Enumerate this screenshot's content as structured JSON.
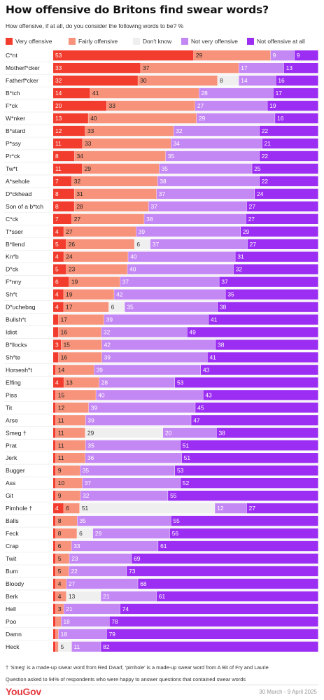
{
  "title": "How offensive do Britons find swear words?",
  "subtitle": "How offensive, if at all, do you consider the following words to be? %",
  "legend": {
    "very": "Very offensive",
    "fairly": "Fairly offensive",
    "dontknow": "Don't know",
    "notvery": "Not very offensive",
    "notatall": "Not offensive at all"
  },
  "footnote1": "† 'Smeg' is a made-up swear word from Red Dwarf, 'pimhole' is a made-up swear word from A Bit of Fry and Laurie",
  "footnote2": "Question asked to 94% of respondents who were happy to answer questions that contained swear words",
  "brand": "YouGov",
  "dates": "30 March - 9 April 2025",
  "colors": {
    "very": "#f23d2e",
    "fairly": "#f7937a",
    "dontknow": "#efefef",
    "notvery": "#c488f5",
    "notatall": "#9b2ef2"
  },
  "chart_data": {
    "type": "bar",
    "orientation": "horizontal",
    "stacked": true,
    "xlim": [
      0,
      100
    ],
    "categories": [
      "C*nt",
      "Motherf*cker",
      "Fatherf*cker",
      "B*tch",
      "F*ck",
      "W*nker",
      "B*stard",
      "P*ssy",
      "Pr*ck",
      "Tw*t",
      "A*sehole",
      "D*ckhead",
      "Son of a b*tch",
      "C*ck",
      "T*sser",
      "B*llend",
      "Kn*b",
      "D*ck",
      "F*nny",
      "Sh*t",
      "D*uchebag",
      "Bullsh*t",
      "Idiot",
      "B*llocks",
      "Sh*te",
      "Horsesh*t",
      "Effing",
      "Piss",
      "Tit",
      "Arse",
      "Smeg †",
      "Prat",
      "Jerk",
      "Bugger",
      "Ass",
      "Git",
      "Pimhole †",
      "Balls",
      "Feck",
      "Crap",
      "Twit",
      "Bum",
      "Bloody",
      "Berk",
      "Hell",
      "Poo",
      "Damn",
      "Heck"
    ],
    "series": [
      {
        "name": "Very offensive",
        "values": [
          53,
          33,
          32,
          14,
          20,
          13,
          12,
          11,
          8,
          11,
          7,
          8,
          8,
          7,
          4,
          5,
          4,
          5,
          6,
          4,
          4,
          2,
          2,
          3,
          2,
          1,
          4,
          1,
          1,
          1,
          1,
          1,
          1,
          1,
          1,
          1,
          4,
          1,
          1,
          1,
          1,
          1,
          1,
          1,
          1,
          1,
          1,
          1
        ]
      },
      {
        "name": "Fairly offensive",
        "values": [
          29,
          37,
          30,
          41,
          33,
          40,
          33,
          33,
          34,
          29,
          32,
          31,
          28,
          27,
          27,
          26,
          24,
          23,
          19,
          19,
          17,
          17,
          16,
          15,
          16,
          14,
          13,
          15,
          12,
          11,
          11,
          11,
          11,
          9,
          10,
          9,
          6,
          8,
          8,
          6,
          5,
          5,
          4,
          4,
          3,
          2,
          1,
          1
        ]
      },
      {
        "name": "Don't know",
        "values": [
          0,
          0,
          8,
          0,
          0,
          0,
          0,
          0,
          0,
          0,
          0,
          0,
          0,
          0,
          0,
          6,
          0,
          0,
          0,
          0,
          6,
          0,
          0,
          0,
          0,
          0,
          0,
          0,
          0,
          0,
          29,
          0,
          0,
          0,
          0,
          0,
          51,
          0,
          6,
          0,
          0,
          0,
          0,
          13,
          0,
          0,
          0,
          5
        ]
      },
      {
        "name": "Not very offensive",
        "values": [
          9,
          17,
          14,
          28,
          27,
          29,
          32,
          34,
          35,
          35,
          38,
          37,
          37,
          38,
          39,
          37,
          40,
          40,
          37,
          42,
          35,
          39,
          32,
          42,
          39,
          39,
          28,
          40,
          39,
          39,
          20,
          35,
          36,
          35,
          37,
          32,
          12,
          35,
          29,
          33,
          23,
          22,
          27,
          21,
          21,
          18,
          18,
          11
        ]
      },
      {
        "name": "Not offensive at all",
        "values": [
          9,
          13,
          16,
          17,
          19,
          16,
          22,
          21,
          22,
          25,
          22,
          24,
          27,
          27,
          29,
          27,
          31,
          32,
          37,
          35,
          38,
          41,
          49,
          38,
          41,
          43,
          53,
          43,
          45,
          47,
          38,
          51,
          51,
          53,
          52,
          55,
          27,
          55,
          56,
          61,
          69,
          73,
          68,
          61,
          74,
          78,
          79,
          82
        ]
      }
    ]
  }
}
